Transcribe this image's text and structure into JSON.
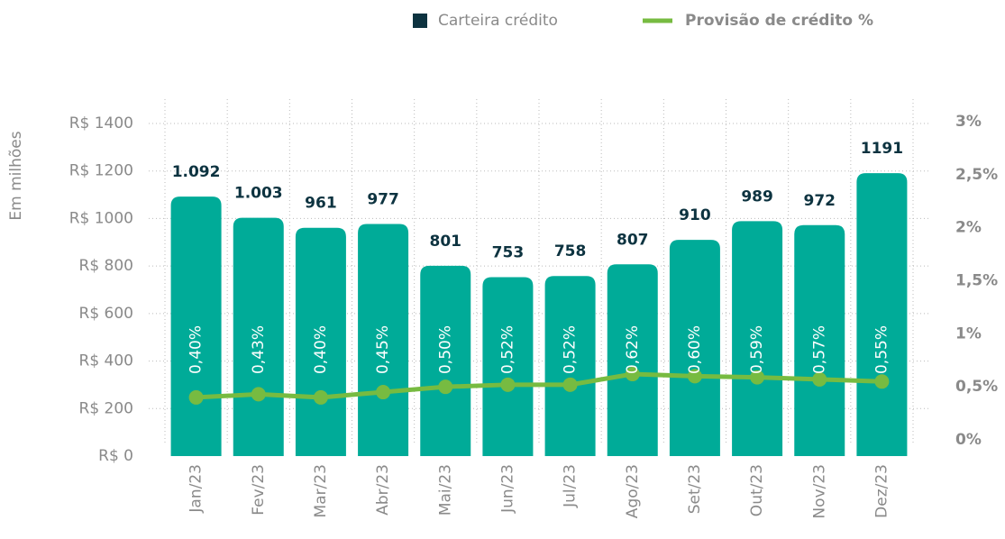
{
  "chart_data": {
    "type": "bar-line",
    "y_label": "Em milhões",
    "categories": [
      "Jan/23",
      "Fev/23",
      "Mar/23",
      "Abr/23",
      "Mai/23",
      "Jun/23",
      "Jul/23",
      "Ago/23",
      "Set/23",
      "Out/23",
      "Nov/23",
      "Dez/23"
    ],
    "series": [
      {
        "name": "Carteira crédito",
        "color": "#00ab98",
        "values": [
          1092,
          1003,
          961,
          977,
          801,
          753,
          758,
          807,
          910,
          989,
          972,
          1191
        ],
        "value_labels": [
          "1.092",
          "1.003",
          "961",
          "977",
          "801",
          "753",
          "758",
          "807",
          "910",
          "989",
          "972",
          "1191"
        ]
      },
      {
        "name": "Provisão de crédito %",
        "color": "#77bb41",
        "axis": "y2",
        "values": [
          0.4,
          0.43,
          0.4,
          0.45,
          0.5,
          0.52,
          0.52,
          0.62,
          0.6,
          0.59,
          0.57,
          0.55
        ],
        "value_labels": [
          "0,40%",
          "0,43%",
          "0,40%",
          "0,45%",
          "0,50%",
          "0,52%",
          "0,52%",
          "0,62%",
          "0,60%",
          "0,59%",
          "0,57%",
          "0,55%"
        ]
      }
    ],
    "ylim": [
      0,
      1400
    ],
    "yticks": [
      {
        "value": 0,
        "label": "R$ 0"
      },
      {
        "value": 200,
        "label": "R$ 200"
      },
      {
        "value": 400,
        "label": "R$ 400"
      },
      {
        "value": 600,
        "label": "R$ 600"
      },
      {
        "value": 800,
        "label": "R$ 800"
      },
      {
        "value": 1000,
        "label": "R$ 1000"
      },
      {
        "value": 1200,
        "label": "R$ 1200"
      },
      {
        "value": 1400,
        "label": "R$ 1400"
      }
    ],
    "y2lim": [
      0,
      3
    ],
    "y2ticks": [
      {
        "value": 0,
        "label": "0%"
      },
      {
        "value": 0.5,
        "label": "0,5%"
      },
      {
        "value": 1,
        "label": "1%"
      },
      {
        "value": 1.5,
        "label": "1,5%"
      },
      {
        "value": 2,
        "label": "2%"
      },
      {
        "value": 2.5,
        "label": "2,5%"
      },
      {
        "value": 3,
        "label": "3%"
      }
    ],
    "grid": true
  }
}
